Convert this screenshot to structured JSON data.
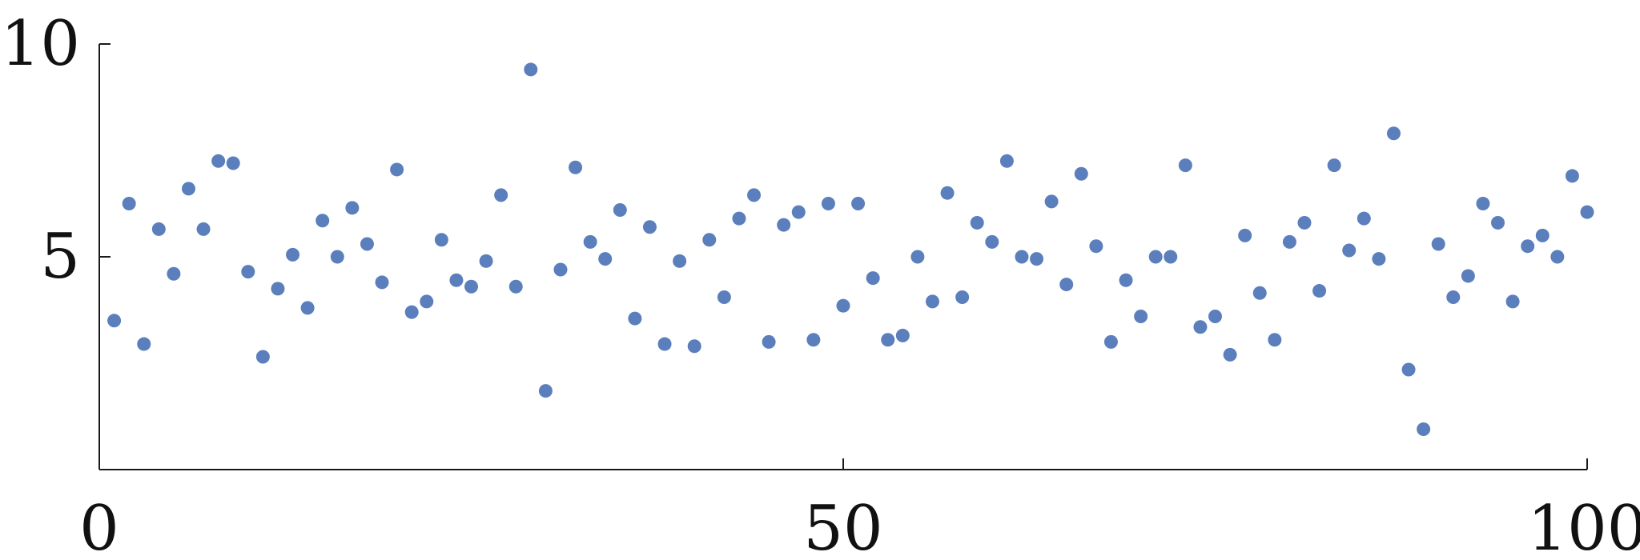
{
  "chart_data": {
    "type": "scatter",
    "title": "",
    "xlabel": "",
    "ylabel": "",
    "xlim": [
      0,
      100
    ],
    "ylim": [
      0,
      10
    ],
    "xticks": [
      {
        "value": 0,
        "label": "0"
      },
      {
        "value": 50,
        "label": "50"
      },
      {
        "value": 100,
        "label": "100"
      }
    ],
    "yticks": [
      {
        "value": 5,
        "label": "5"
      },
      {
        "value": 10,
        "label": "10"
      }
    ],
    "grid": false,
    "legend": "none",
    "marker_color": "#5b7fbc",
    "series": [
      {
        "x": [
          1,
          2,
          3,
          4,
          5,
          6,
          7,
          8,
          9,
          10,
          11,
          12,
          13,
          14,
          15,
          16,
          17,
          18,
          19,
          20,
          21,
          22,
          23,
          24,
          25,
          26,
          27,
          28,
          29,
          30,
          31,
          32,
          33,
          34,
          35,
          36,
          37,
          38,
          39,
          40,
          41,
          42,
          43,
          44,
          45,
          46,
          47,
          48,
          49,
          50,
          51,
          52,
          53,
          54,
          55,
          56,
          57,
          58,
          59,
          60,
          61,
          62,
          63,
          64,
          65,
          66,
          67,
          68,
          69,
          70,
          71,
          72,
          73,
          74,
          75,
          76,
          77,
          78,
          79,
          80,
          81,
          82,
          83,
          84,
          85,
          86,
          87,
          88,
          89,
          90,
          91,
          92,
          93,
          94,
          95,
          96,
          97,
          98,
          99,
          100
        ],
        "y": [
          3.5,
          6.25,
          2.95,
          5.65,
          4.6,
          6.6,
          5.65,
          7.25,
          7.2,
          4.65,
          2.65,
          4.25,
          5.05,
          3.8,
          5.85,
          5.0,
          6.15,
          5.3,
          4.4,
          7.05,
          3.7,
          3.95,
          5.4,
          4.45,
          4.3,
          4.9,
          6.45,
          4.3,
          9.4,
          1.85,
          4.7,
          7.1,
          5.35,
          4.95,
          6.1,
          3.55,
          5.7,
          2.95,
          4.9,
          2.9,
          5.4,
          4.05,
          5.9,
          6.45,
          3.0,
          5.75,
          6.05,
          3.05,
          6.25,
          3.85,
          6.25,
          4.5,
          3.05,
          3.15,
          5.0,
          3.95,
          6.5,
          4.05,
          5.8,
          5.35,
          7.25,
          5.0,
          4.95,
          6.3,
          4.35,
          6.95,
          5.25,
          3.0,
          4.45,
          3.6,
          5.0,
          5.0,
          7.15,
          3.35,
          3.6,
          2.7,
          5.5,
          4.15,
          3.05,
          5.35,
          5.8,
          4.2,
          7.15,
          5.15,
          5.9,
          4.95,
          7.9,
          2.35,
          0.95,
          5.3,
          4.05,
          4.55,
          6.25,
          5.8,
          3.95,
          5.25,
          5.5,
          5.0,
          6.9,
          6.05
        ]
      }
    ]
  }
}
